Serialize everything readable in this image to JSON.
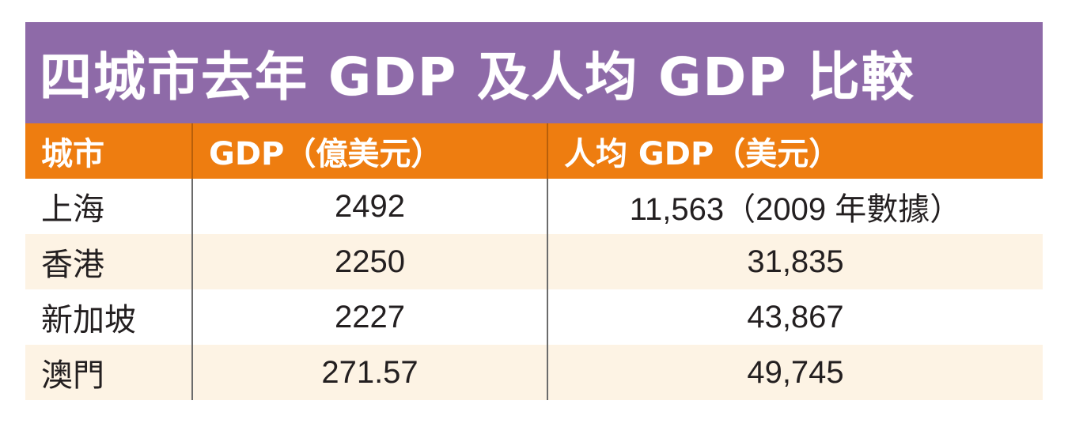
{
  "chart_data": {
    "type": "table",
    "title": "四城市去年 GDP 及人均 GDP 比較",
    "columns": [
      "城市",
      "GDP（億美元）",
      "人均 GDP（美元）"
    ],
    "rows": [
      {
        "city": "上海",
        "gdp": "2492",
        "gdp_per_capita": "11,563（2009 年數據）"
      },
      {
        "city": "香港",
        "gdp": "2250",
        "gdp_per_capita": "31,835"
      },
      {
        "city": "新加坡",
        "gdp": "2227",
        "gdp_per_capita": "43,867"
      },
      {
        "city": "澳門",
        "gdp": "271.57",
        "gdp_per_capita": "49,745"
      }
    ],
    "colors": {
      "title_bg": "#8e6aa8",
      "header_bg": "#ee7d10",
      "stripe_bg": "#fdf3e4"
    }
  }
}
